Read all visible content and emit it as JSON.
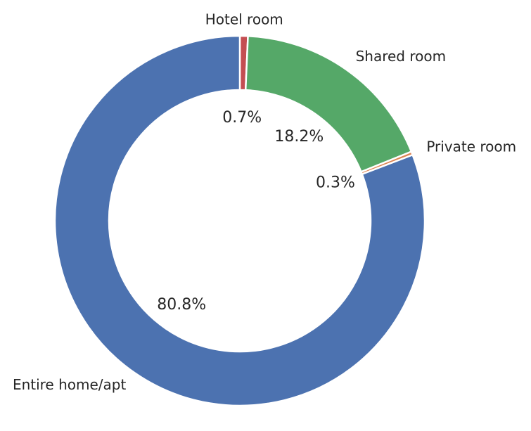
{
  "chart_data": {
    "type": "pie",
    "variant": "donut",
    "title": "",
    "start_angle_deg": 90,
    "direction": "clockwise",
    "slices": [
      {
        "label": "Hotel room",
        "value": 0.7,
        "pct_text": "0.7%",
        "color": "#c44e52"
      },
      {
        "label": "Shared room",
        "value": 18.2,
        "pct_text": "18.2%",
        "color": "#55a868"
      },
      {
        "label": "Private room",
        "value": 0.3,
        "pct_text": "0.3%",
        "color": "#dd8452"
      },
      {
        "label": "Entire home/apt",
        "value": 80.8,
        "pct_text": "80.8%",
        "color": "#4c72b0"
      }
    ],
    "legend": "none",
    "grid": false
  }
}
